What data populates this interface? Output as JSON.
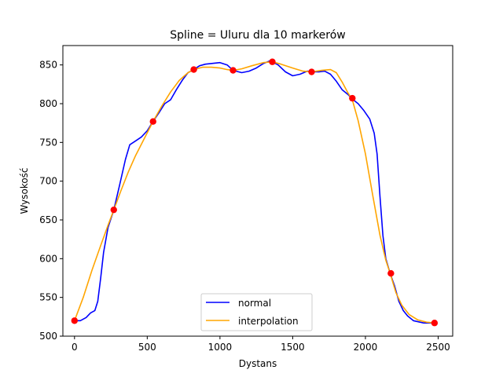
{
  "chart_data": {
    "type": "line",
    "title": "Spline = Uluru dla 10 markerów",
    "xlabel": "Dystans",
    "ylabel": "Wysokość",
    "xlim": [
      -80,
      2600
    ],
    "ylim": [
      500,
      875
    ],
    "x_ticks": [
      0,
      500,
      1000,
      1500,
      2000,
      2500
    ],
    "y_ticks": [
      500,
      550,
      600,
      650,
      700,
      750,
      800,
      850
    ],
    "grid": false,
    "legend_position": "bottom-center",
    "series": [
      {
        "name": "normal",
        "color": "#0000ff",
        "points": [
          [
            0,
            520
          ],
          [
            40,
            520
          ],
          [
            80,
            524
          ],
          [
            110,
            530
          ],
          [
            140,
            533
          ],
          [
            160,
            545
          ],
          [
            180,
            575
          ],
          [
            200,
            608
          ],
          [
            230,
            640
          ],
          [
            270,
            663
          ],
          [
            310,
            695
          ],
          [
            350,
            728
          ],
          [
            380,
            747
          ],
          [
            420,
            752
          ],
          [
            460,
            757
          ],
          [
            500,
            765
          ],
          [
            540,
            777
          ],
          [
            580,
            788
          ],
          [
            620,
            800
          ],
          [
            660,
            805
          ],
          [
            700,
            818
          ],
          [
            740,
            830
          ],
          [
            780,
            840
          ],
          [
            820,
            844
          ],
          [
            860,
            849
          ],
          [
            900,
            851
          ],
          [
            950,
            852
          ],
          [
            1000,
            853
          ],
          [
            1050,
            850
          ],
          [
            1090,
            843
          ],
          [
            1150,
            840
          ],
          [
            1200,
            842
          ],
          [
            1250,
            846
          ],
          [
            1300,
            852
          ],
          [
            1340,
            855
          ],
          [
            1370,
            853
          ],
          [
            1400,
            850
          ],
          [
            1450,
            841
          ],
          [
            1500,
            836
          ],
          [
            1550,
            838
          ],
          [
            1600,
            842
          ],
          [
            1640,
            841
          ],
          [
            1680,
            841
          ],
          [
            1720,
            842
          ],
          [
            1760,
            838
          ],
          [
            1800,
            829
          ],
          [
            1840,
            818
          ],
          [
            1880,
            812
          ],
          [
            1910,
            806
          ],
          [
            1950,
            800
          ],
          [
            1990,
            791
          ],
          [
            2030,
            780
          ],
          [
            2060,
            762
          ],
          [
            2080,
            735
          ],
          [
            2100,
            680
          ],
          [
            2120,
            630
          ],
          [
            2140,
            600
          ],
          [
            2170,
            581
          ],
          [
            2200,
            565
          ],
          [
            2230,
            545
          ],
          [
            2260,
            533
          ],
          [
            2290,
            526
          ],
          [
            2330,
            520
          ],
          [
            2400,
            517
          ],
          [
            2475,
            517
          ]
        ]
      },
      {
        "name": "interpolation",
        "color": "#ffa500",
        "points": [
          [
            0,
            520
          ],
          [
            60,
            550
          ],
          [
            120,
            585
          ],
          [
            180,
            617
          ],
          [
            230,
            643
          ],
          [
            270,
            663
          ],
          [
            320,
            688
          ],
          [
            370,
            712
          ],
          [
            420,
            733
          ],
          [
            480,
            755
          ],
          [
            540,
            777
          ],
          [
            600,
            797
          ],
          [
            660,
            815
          ],
          [
            720,
            830
          ],
          [
            780,
            840
          ],
          [
            820,
            844
          ],
          [
            880,
            847
          ],
          [
            940,
            847
          ],
          [
            1000,
            846
          ],
          [
            1050,
            844
          ],
          [
            1090,
            843
          ],
          [
            1150,
            845
          ],
          [
            1220,
            849
          ],
          [
            1300,
            853
          ],
          [
            1360,
            854
          ],
          [
            1420,
            851
          ],
          [
            1500,
            846
          ],
          [
            1570,
            842
          ],
          [
            1630,
            841
          ],
          [
            1700,
            843
          ],
          [
            1760,
            844
          ],
          [
            1800,
            840
          ],
          [
            1840,
            828
          ],
          [
            1880,
            814
          ],
          [
            1910,
            805
          ],
          [
            1950,
            778
          ],
          [
            2000,
            735
          ],
          [
            2050,
            682
          ],
          [
            2100,
            630
          ],
          [
            2140,
            598
          ],
          [
            2170,
            581
          ],
          [
            2210,
            556
          ],
          [
            2250,
            540
          ],
          [
            2300,
            528
          ],
          [
            2360,
            521
          ],
          [
            2420,
            518
          ],
          [
            2475,
            517
          ]
        ]
      }
    ],
    "markers": {
      "color": "#ff0000",
      "points": [
        [
          0,
          520
        ],
        [
          270,
          663
        ],
        [
          540,
          777
        ],
        [
          820,
          844
        ],
        [
          1090,
          843
        ],
        [
          1360,
          854
        ],
        [
          1630,
          841
        ],
        [
          1910,
          807
        ],
        [
          2175,
          581
        ],
        [
          2475,
          517
        ]
      ]
    }
  }
}
